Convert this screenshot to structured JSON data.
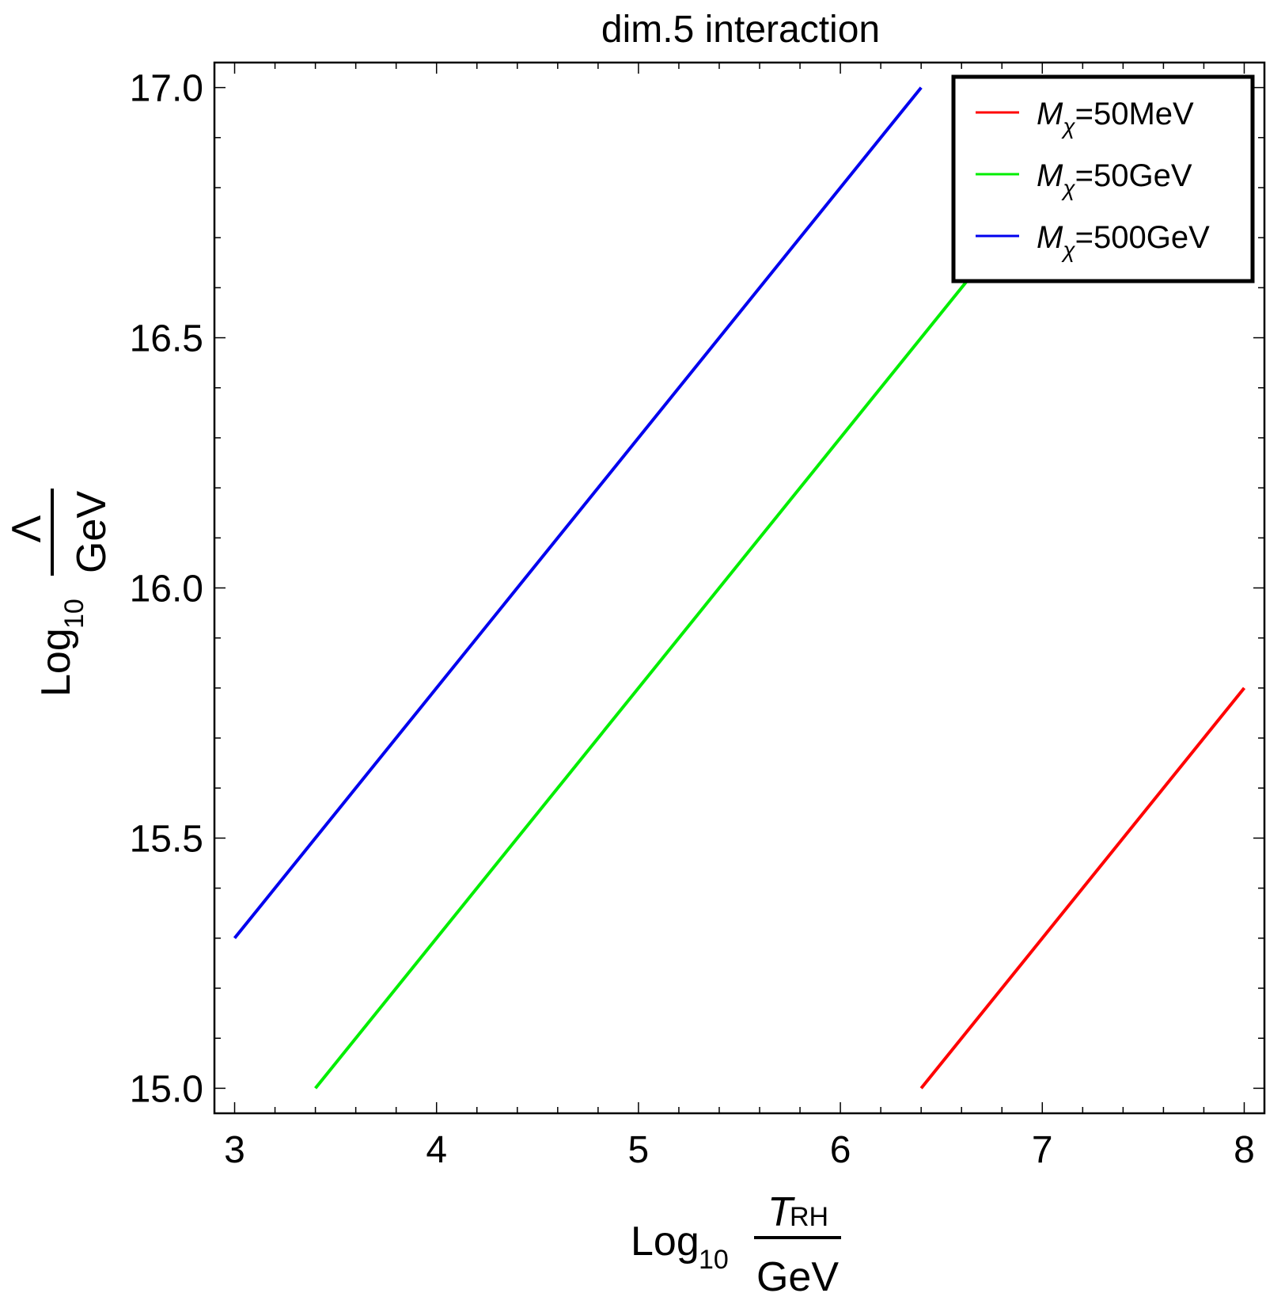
{
  "chart_data": {
    "type": "line",
    "title": "dim.5 interaction",
    "xlabel": {
      "prefix": "Log",
      "sub": "10",
      "numerator": "T",
      "numerator_sub": "RH",
      "denominator": "GeV"
    },
    "ylabel": {
      "prefix": "Log",
      "sub": "10",
      "numerator": "Λ",
      "denominator": "GeV"
    },
    "xlim": [
      2.9,
      8.1
    ],
    "ylim": [
      14.95,
      17.05
    ],
    "xticks": [
      3,
      4,
      5,
      6,
      7,
      8
    ],
    "xtick_labels": [
      "3",
      "4",
      "5",
      "6",
      "7",
      "8"
    ],
    "yticks": [
      15.0,
      15.5,
      16.0,
      16.5,
      17.0
    ],
    "ytick_labels": [
      "15.0",
      "15.5",
      "16.0",
      "16.5",
      "17.0"
    ],
    "grid": false,
    "legend_position": "top-right",
    "series": [
      {
        "symbol": "M",
        "sub": "χ",
        "label": "=50MeV",
        "color": "#ff0000",
        "x": [
          6.4,
          8.0
        ],
        "y": [
          15.0,
          15.8
        ]
      },
      {
        "symbol": "M",
        "sub": "χ",
        "label": "=50GeV",
        "color": "#00ee00",
        "x": [
          3.4,
          7.4
        ],
        "y": [
          15.0,
          17.0
        ]
      },
      {
        "symbol": "M",
        "sub": "χ",
        "label": "=500GeV",
        "color": "#0000ee",
        "x": [
          3.0,
          6.4
        ],
        "y": [
          15.3,
          17.0
        ]
      }
    ]
  }
}
